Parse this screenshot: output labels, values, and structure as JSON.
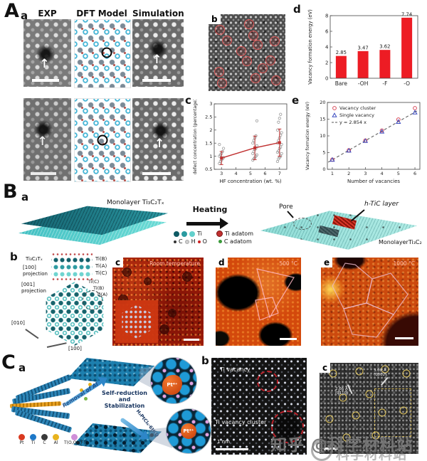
{
  "icons": {
    "up_arrow": "↑"
  },
  "watermark": {
    "main": "知乎 @科学材料站",
    "shadow": "科学材料站"
  },
  "panelA": {
    "label": "A",
    "a": {
      "label": "a",
      "columns": [
        "EXP",
        "DFT Model",
        "Simulation"
      ]
    },
    "b": {
      "label": "b",
      "markers": [
        [
          15,
          20
        ],
        [
          24,
          34
        ],
        [
          53,
          13
        ],
        [
          58,
          28
        ],
        [
          64,
          40
        ],
        [
          86,
          35
        ],
        [
          50,
          61
        ],
        [
          14,
          75
        ],
        [
          18,
          90
        ],
        [
          61,
          83
        ],
        [
          70,
          70
        ],
        [
          81,
          60
        ],
        [
          43,
          48
        ],
        [
          88,
          86
        ]
      ]
    },
    "c": {
      "label": "c"
    },
    "d": {
      "label": "d"
    },
    "e": {
      "label": "e"
    }
  },
  "panelB": {
    "label": "B",
    "a": {
      "label": "a",
      "left_sheet_label": "Monolayer Ti₃C₂Tₓ",
      "heating": "Heating",
      "legend": {
        "ti": "Ti",
        "c": "C",
        "h": "H",
        "o": "O",
        "ti_adatom": "Ti adatom",
        "c_adatom": "C adatom"
      },
      "pore": "Pore",
      "htic": "h-TiC layer",
      "right_sheet_label": "MonolayerTi₃C₂"
    },
    "b": {
      "label": "b",
      "formula": "Ti₃C₂Tₓ",
      "proj100_l1": "[100]",
      "proj100_l2": "projection",
      "row_labels": [
        "Ti(B)",
        "Ti(A)",
        "Ti(C)"
      ],
      "proj001_l1": "[001]",
      "proj001_l2": "projection",
      "hex_labels": [
        "Ti(C)",
        "Ti(B)",
        "Ti(A)"
      ],
      "axis_a": "[010]",
      "axis_b": "[100]"
    },
    "c": {
      "label": "c",
      "caption": "Room temperature"
    },
    "d": {
      "label": "d",
      "caption": "500 °C"
    },
    "e": {
      "label": "e",
      "caption": "1000 °C"
    }
  },
  "panelC": {
    "label": "C",
    "a": {
      "label": "a",
      "arrow_removal": "Removal of Al",
      "process_l1": "Self-reduction",
      "process_l2": "and",
      "process_l3": "Stabilization",
      "reagent": "H₂PtCl₆·6H₂O",
      "pt_top": "Pt⁴⁺",
      "pt_bottom": "Pt²⁺",
      "legend": [
        {
          "name": "Pt",
          "color": "#d93a20"
        },
        {
          "name": "Ti",
          "color": "#1e78c8"
        },
        {
          "name": "C",
          "color": "#3a3a3a"
        },
        {
          "name": "Al",
          "color": "#e8b31e"
        },
        {
          "name": "T(O,OH,F)",
          "color": "#cf8fd8"
        }
      ]
    },
    "b": {
      "label": "b",
      "annotation_top": "Ti vacancy",
      "annotation_bottom": "Ti vacancy cluster",
      "scale": "1 nm"
    },
    "c": {
      "label": "c",
      "markers": [
        [
          14,
          12
        ],
        [
          40,
          9
        ],
        [
          66,
          7
        ],
        [
          88,
          12
        ],
        [
          24,
          38
        ],
        [
          50,
          34
        ],
        [
          10,
          62
        ],
        [
          37,
          58
        ],
        [
          63,
          55
        ],
        [
          85,
          52
        ],
        [
          27,
          82
        ],
        [
          57,
          80
        ]
      ],
      "ann1_l1": "3.08 Å",
      "ann1_l2": "(0002)",
      "ann2_l1": "2.66 Å",
      "ann2_l2": "(0110)"
    }
  },
  "chart_data": [
    {
      "id": "A-c",
      "type": "scatter",
      "xlabel": "HF concentration (wt. %)",
      "ylabel": "defect concentration (percentage)",
      "xlim": [
        2.5,
        7.5
      ],
      "ylim": [
        0.5,
        3
      ],
      "xticks": [
        3,
        4,
        5,
        6,
        7
      ],
      "yticks": [
        0.5,
        1,
        1.5,
        2,
        2.5,
        3
      ],
      "point_color": "#9a9a9a",
      "clusters": [
        {
          "x": 3,
          "points": [
            0.72,
            0.8,
            0.85,
            0.9,
            0.95,
            1.0,
            1.05,
            1.1,
            1.18,
            1.3,
            1.45
          ]
        },
        {
          "x": 5.3,
          "points": [
            0.85,
            0.9,
            0.95,
            1.0,
            1.05,
            1.1,
            1.18,
            1.25,
            1.3,
            1.4,
            1.5,
            1.6,
            1.7,
            1.78,
            2.35
          ]
        },
        {
          "x": 7,
          "points": [
            0.8,
            0.9,
            0.95,
            1.0,
            1.1,
            1.15,
            1.2,
            1.3,
            1.35,
            1.45,
            1.5,
            1.6,
            1.7,
            1.8,
            1.9,
            2.0,
            2.3,
            2.45,
            2.6
          ]
        }
      ],
      "trend": {
        "x": [
          3,
          5.3,
          7
        ],
        "y": [
          0.93,
          1.32,
          1.52
        ],
        "err": [
          0.25,
          0.45,
          0.52
        ],
        "color": "#c03030"
      }
    },
    {
      "id": "A-d",
      "type": "bar",
      "categories": [
        "Bare",
        "-OH",
        "-F",
        "-O"
      ],
      "values": [
        2.85,
        3.47,
        3.62,
        7.74
      ],
      "ylabel": "Vacancy formation energy (eV)",
      "ylim": [
        0,
        8
      ],
      "yticks": [
        0,
        2,
        4,
        6,
        8
      ],
      "bar_color": "#ed1c24"
    },
    {
      "id": "A-e",
      "type": "scatter",
      "xlabel": "Number of vacancies",
      "ylabel": "Vacancy formation energy (eV)",
      "xlim": [
        0.7,
        6.3
      ],
      "ylim": [
        0,
        20
      ],
      "xticks": [
        1,
        2,
        3,
        4,
        5,
        6
      ],
      "yticks": [
        0,
        5,
        10,
        15,
        20
      ],
      "series": [
        {
          "name": "Vacancy cluster",
          "marker": "circle",
          "color": "#d84a5a",
          "x": [
            1,
            2,
            3,
            4,
            5,
            6
          ],
          "y": [
            2.9,
            5.7,
            8.6,
            11.6,
            14.9,
            18.3
          ]
        },
        {
          "name": "Single vacancy",
          "marker": "triangle",
          "color": "#3c4cc0",
          "x": [
            1,
            2,
            3,
            4,
            5,
            6
          ],
          "y": [
            2.85,
            5.6,
            8.5,
            11.3,
            14.2,
            17.0
          ]
        }
      ],
      "fit": {
        "label": "y = 2.854 x",
        "slope": 2.854,
        "x0": 0.75,
        "x1": 6.15,
        "color": "#555555"
      }
    }
  ]
}
